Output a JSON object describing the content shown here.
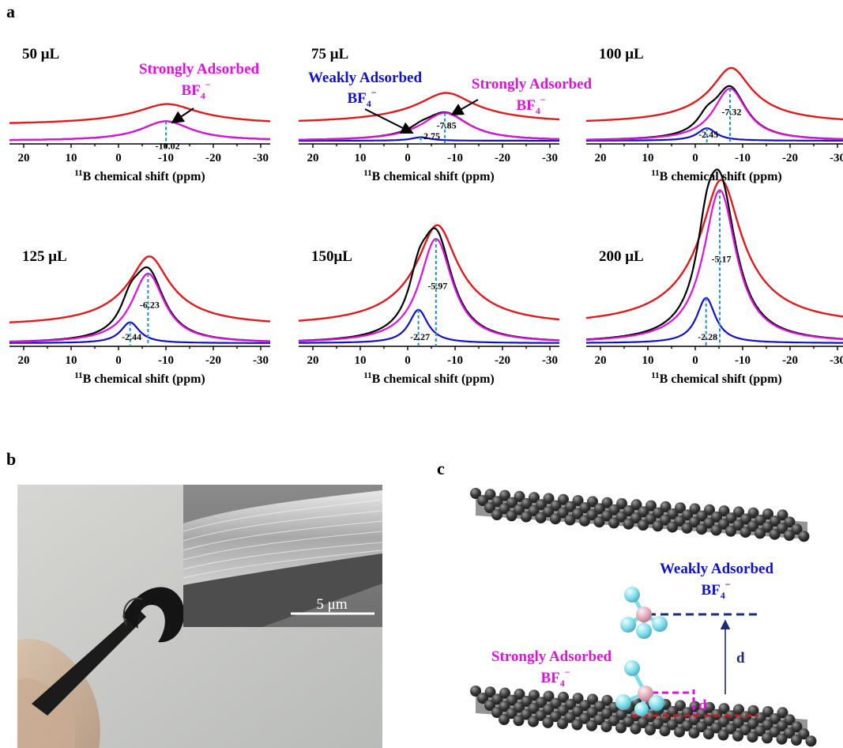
{
  "panel_labels": {
    "a": "a",
    "b": "b",
    "c": "c"
  },
  "colors": {
    "total_fit": "#e31a1c",
    "experimental": "#000000",
    "strongly_adsorbed": "#e010e0",
    "weakly_adsorbed": "#1010d0",
    "peak_marker": "#1f8fd0",
    "graphene_sheet": "#4a4a4a",
    "boron_atom": "#e0a0b0",
    "fluorine_atom": "#80e8f0"
  },
  "annotations": {
    "strongly_adsorbed": "Strongly Adsorbed",
    "weakly_adsorbed": "Weakly Adsorbed",
    "anion_base": "BF",
    "anion_sub": "4",
    "anion_sup": "−"
  },
  "chart_data": [
    {
      "type": "line",
      "volume": "50 μL",
      "xlabel_sup": "11",
      "xlabel": "B chemical shift (ppm)",
      "xlim": [
        23,
        -32
      ],
      "xticks": [
        20,
        10,
        0,
        -10,
        -20,
        -30
      ],
      "strong_peak": -10.02,
      "weak_peak": null,
      "strong_label": "-10.02",
      "weak_label": null,
      "strong_amplitude": 0.28,
      "weak_amplitude": 0,
      "total_amplitude": 0.3,
      "annotated": [
        "strongly_adsorbed"
      ]
    },
    {
      "type": "line",
      "volume": "75 μL",
      "xlabel_sup": "11",
      "xlabel": "B chemical shift (ppm)",
      "xlim": [
        23,
        -32
      ],
      "xticks": [
        20,
        10,
        0,
        -10,
        -20,
        -30
      ],
      "strong_peak": -7.85,
      "weak_peak": -2.75,
      "strong_label": "-7.85",
      "weak_label": "-2.75",
      "strong_amplitude": 0.4,
      "weak_amplitude": 0.05,
      "total_amplitude": 0.44,
      "annotated": [
        "weakly_adsorbed",
        "strongly_adsorbed"
      ]
    },
    {
      "type": "line",
      "volume": "100 μL",
      "xlabel_sup": "11",
      "xlabel": "B chemical shift (ppm)",
      "xlim": [
        23,
        -32
      ],
      "xticks": [
        20,
        10,
        0,
        -10,
        -20,
        -30
      ],
      "strong_peak": -7.32,
      "weak_peak": -2.45,
      "strong_label": "-7.32",
      "weak_label": "-2.45",
      "strong_amplitude": 0.75,
      "weak_amplitude": 0.18,
      "total_amplitude": 0.8,
      "annotated": []
    },
    {
      "type": "line",
      "volume": "125 μL",
      "xlabel_sup": "11",
      "xlabel": "B chemical shift (ppm)",
      "xlim": [
        23,
        -32
      ],
      "xticks": [
        20,
        10,
        0,
        -10,
        -20,
        -30
      ],
      "strong_peak": -6.23,
      "weak_peak": -2.44,
      "strong_label": "-6.23",
      "weak_label": "-2.44",
      "strong_amplitude": 1.0,
      "weak_amplitude": 0.3,
      "total_amplitude": 1.0,
      "annotated": []
    },
    {
      "type": "line",
      "volume": "150μL",
      "xlabel_sup": "11",
      "xlabel": "B chemical shift (ppm)",
      "xlim": [
        23,
        -32
      ],
      "xticks": [
        20,
        10,
        0,
        -10,
        -20,
        -30
      ],
      "strong_peak": -5.97,
      "weak_peak": -2.27,
      "strong_label": "-5.97",
      "weak_label": "-2.27",
      "strong_amplitude": 1.5,
      "weak_amplitude": 0.48,
      "total_amplitude": 1.45,
      "annotated": []
    },
    {
      "type": "line",
      "volume": "200 μL",
      "xlabel_sup": "11",
      "xlabel": "B chemical shift (ppm)",
      "xlim": [
        23,
        -32
      ],
      "xticks": [
        20,
        10,
        0,
        -10,
        -20,
        -30
      ],
      "strong_peak": -5.17,
      "weak_peak": -2.28,
      "strong_label": "-5.17",
      "weak_label": "-2.28",
      "strong_amplitude": 2.2,
      "weak_amplitude": 0.65,
      "total_amplitude": 2.1,
      "annotated": []
    }
  ],
  "photo": {
    "scale_bar": "5 μm"
  },
  "model": {
    "weak_label": "Weakly Adsorbed",
    "strong_label": "Strongly Adsorbed",
    "distance_label": "d"
  }
}
